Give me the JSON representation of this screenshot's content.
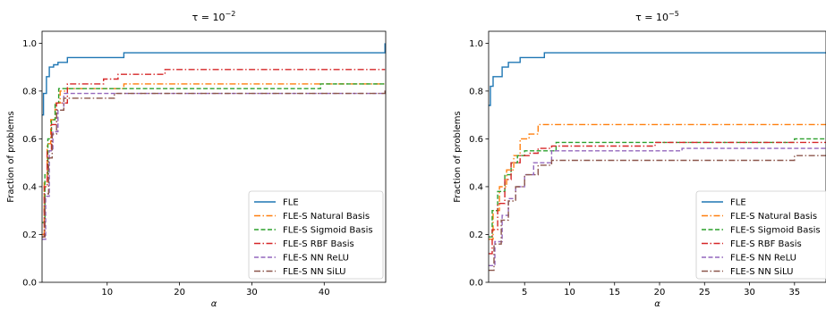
{
  "series_styles": [
    {
      "name": "FLE",
      "color": "#1f77b4",
      "dash": ""
    },
    {
      "name": "FLE-S Natural Basis",
      "color": "#ff7f0e",
      "dash": "7 2.5 1.5 2.5"
    },
    {
      "name": "FLE-S Sigmoid Basis",
      "color": "#2ca02c",
      "dash": "5 2.5"
    },
    {
      "name": "FLE-S RBF Basis",
      "color": "#d62728",
      "dash": "7 2.5 1.5 2.5"
    },
    {
      "name": "FLE-S NN ReLU",
      "color": "#9467bd",
      "dash": "5 2.5"
    },
    {
      "name": "FLE-S NN SiLU",
      "color": "#8c564b",
      "dash": "7 2.5 1.5 2.5"
    }
  ],
  "chart_data": [
    {
      "type": "line",
      "step": true,
      "title_base": "τ = 10",
      "title_exp": "−2",
      "xlabel": "α",
      "ylabel": "Fraction of problems",
      "xlim": [
        1,
        48.5
      ],
      "ylim": [
        0,
        1.05
      ],
      "xticks": [
        10,
        20,
        30,
        40
      ],
      "yticks": [
        0.0,
        0.2,
        0.4,
        0.6,
        0.8,
        1.0
      ],
      "ytick_labels": [
        "0.0",
        "0.2",
        "0.4",
        "0.6",
        "0.8",
        "1.0"
      ],
      "legend_position": "lower-right",
      "grid": false,
      "series": [
        {
          "name": "FLE",
          "x": [
            1,
            1.2,
            1.6,
            2.0,
            2.6,
            3.2,
            4.5,
            12.3,
            48.4,
            48.4
          ],
          "y": [
            0.7,
            0.79,
            0.86,
            0.9,
            0.91,
            0.92,
            0.94,
            0.96,
            0.96,
            1.0
          ]
        },
        {
          "name": "FLE-S Natural Basis",
          "x": [
            1,
            1.3,
            1.7,
            2.2,
            2.8,
            3.5,
            4.5,
            12.3,
            48.4
          ],
          "y": [
            0.2,
            0.42,
            0.58,
            0.68,
            0.75,
            0.8,
            0.81,
            0.83,
            0.83
          ]
        },
        {
          "name": "FLE-S Sigmoid Basis",
          "x": [
            1,
            1.4,
            1.8,
            2.3,
            2.8,
            3.3,
            39.5,
            48.4
          ],
          "y": [
            0.25,
            0.45,
            0.6,
            0.68,
            0.75,
            0.81,
            0.83,
            0.83
          ]
        },
        {
          "name": "FLE-S RBF Basis",
          "x": [
            1,
            1.3,
            1.7,
            2.3,
            3.0,
            4.5,
            9.5,
            11.5,
            18.0,
            48.4
          ],
          "y": [
            0.19,
            0.4,
            0.55,
            0.66,
            0.75,
            0.83,
            0.85,
            0.87,
            0.89,
            0.89
          ]
        },
        {
          "name": "FLE-S NN ReLU",
          "x": [
            1,
            1.5,
            2.0,
            2.5,
            3.2,
            4.0,
            48.4
          ],
          "y": [
            0.18,
            0.36,
            0.55,
            0.63,
            0.72,
            0.79,
            0.79
          ]
        },
        {
          "name": "FLE-S NN SiLU",
          "x": [
            1,
            1.4,
            1.9,
            2.4,
            3.0,
            4.0,
            11.0,
            48.4
          ],
          "y": [
            0.19,
            0.37,
            0.52,
            0.62,
            0.72,
            0.77,
            0.79,
            0.81
          ]
        }
      ]
    },
    {
      "type": "line",
      "step": true,
      "title_base": "τ = 10",
      "title_exp": "−5",
      "xlabel": "α",
      "ylabel": "Fraction of problems",
      "xlim": [
        1,
        38.5
      ],
      "ylim": [
        0,
        1.05
      ],
      "xticks": [
        5,
        10,
        15,
        20,
        25,
        30,
        35
      ],
      "yticks": [
        0.0,
        0.2,
        0.4,
        0.6,
        0.8,
        1.0
      ],
      "ytick_labels": [
        "0.0",
        "0.2",
        "0.4",
        "0.6",
        "0.8",
        "1.0"
      ],
      "legend_position": "lower-right",
      "grid": false,
      "series": [
        {
          "name": "FLE",
          "x": [
            1,
            1.2,
            1.5,
            2.5,
            3.2,
            4.5,
            7.2,
            38.5
          ],
          "y": [
            0.74,
            0.82,
            0.86,
            0.9,
            0.92,
            0.94,
            0.96,
            0.96
          ]
        },
        {
          "name": "FLE-S Natural Basis",
          "x": [
            1,
            1.5,
            2.2,
            3.0,
            3.8,
            4.5,
            5.5,
            6.5,
            38.5
          ],
          "y": [
            0.18,
            0.3,
            0.4,
            0.47,
            0.53,
            0.6,
            0.62,
            0.66,
            0.66
          ]
        },
        {
          "name": "FLE-S Sigmoid Basis",
          "x": [
            1,
            1.4,
            2.0,
            2.8,
            3.5,
            4.2,
            5.0,
            8.5,
            35.0,
            38.5
          ],
          "y": [
            0.19,
            0.3,
            0.38,
            0.45,
            0.5,
            0.53,
            0.55,
            0.585,
            0.6,
            0.6
          ]
        },
        {
          "name": "FLE-S RBF Basis",
          "x": [
            1,
            1.4,
            2.0,
            2.8,
            3.5,
            4.5,
            5.5,
            6.5,
            8.0,
            19.5,
            38.5
          ],
          "y": [
            0.12,
            0.22,
            0.33,
            0.43,
            0.5,
            0.53,
            0.54,
            0.56,
            0.57,
            0.585,
            0.585
          ]
        },
        {
          "name": "FLE-S NN ReLU",
          "x": [
            1,
            1.7,
            2.5,
            3.2,
            4.0,
            5.0,
            6.0,
            8.0,
            22.5,
            38.5
          ],
          "y": [
            0.07,
            0.17,
            0.28,
            0.35,
            0.4,
            0.45,
            0.5,
            0.55,
            0.56,
            0.56
          ]
        },
        {
          "name": "FLE-S NN SiLU",
          "x": [
            1,
            1.6,
            2.4,
            3.2,
            4.0,
            5.0,
            6.5,
            8.0,
            35.0,
            38.5
          ],
          "y": [
            0.05,
            0.16,
            0.26,
            0.34,
            0.4,
            0.45,
            0.49,
            0.51,
            0.53,
            0.53
          ]
        }
      ]
    }
  ]
}
